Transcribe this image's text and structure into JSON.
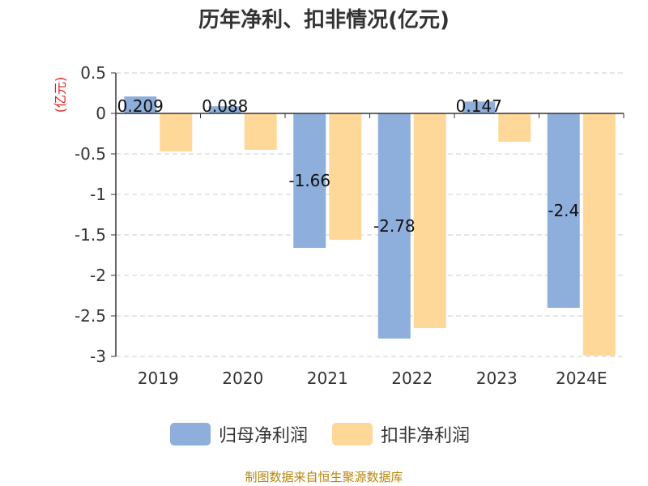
{
  "title": "历年净利、扣非情况(亿元)",
  "footer": "制图数据来自恒生聚源数据库",
  "chart_data": {
    "type": "bar",
    "title": "历年净利、扣非情况(亿元)",
    "ylabel": "(亿元)",
    "categories": [
      "2019",
      "2020",
      "2021",
      "2022",
      "2023",
      "2024E"
    ],
    "ylim": [
      -3,
      0.5
    ],
    "yticks": [
      0.5,
      0,
      -0.5,
      -1,
      -1.5,
      -2,
      -2.5,
      -3
    ],
    "ytick_labels": [
      "0.5",
      "0",
      "-0.5",
      "-1",
      "-1.5",
      "-2",
      "-2.5",
      "-3"
    ],
    "grid": true,
    "legend_position": "bottom",
    "series": [
      {
        "name": "归母净利润",
        "color": "#8eaedb",
        "values": [
          0.209,
          0.088,
          -1.66,
          -2.78,
          0.147,
          -2.4
        ],
        "labels": [
          "0.209",
          "0.088",
          "-1.66",
          "-2.78",
          "0.147",
          "-2.4"
        ]
      },
      {
        "name": "扣非净利润",
        "color": "#fed899",
        "values": [
          -0.47,
          -0.45,
          -1.56,
          -2.65,
          -0.35,
          -2.99
        ],
        "labels": [
          "",
          "",
          "",
          "",
          "",
          ""
        ]
      }
    ],
    "unit_color": "#e02020"
  }
}
